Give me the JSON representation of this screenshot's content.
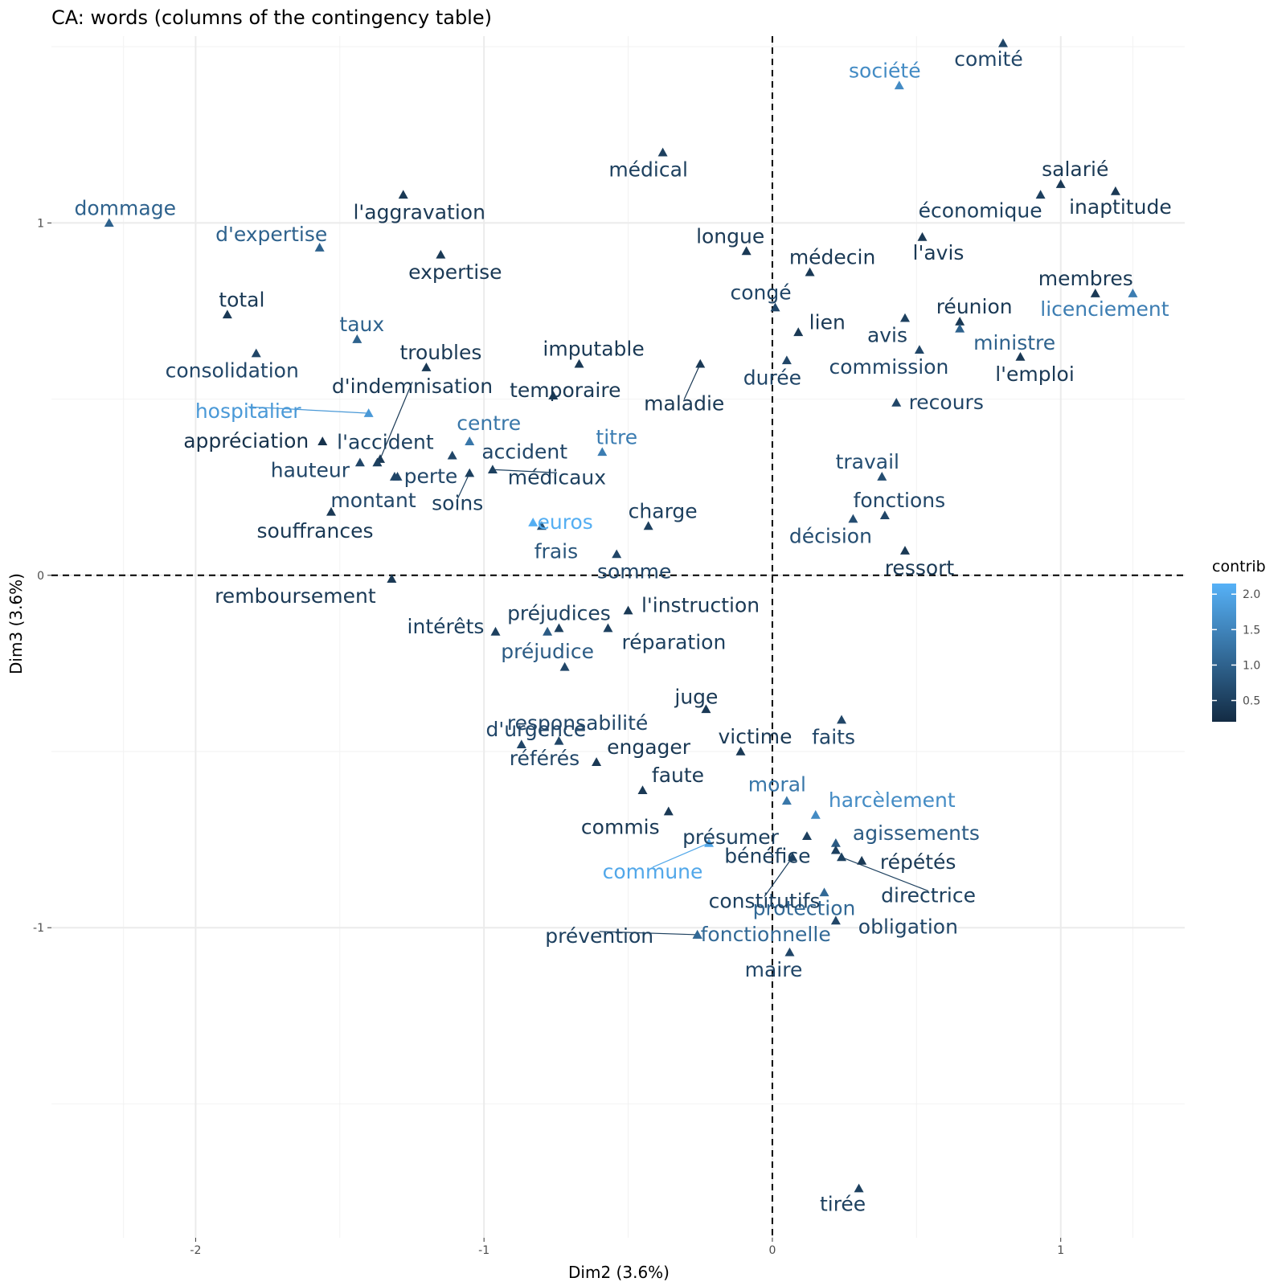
{
  "chart_data": {
    "type": "scatter",
    "title": "CA: words (columns of the contingency table)",
    "xlabel": "Dim2 (3.6%)",
    "ylabel": "Dim3 (3.6%)",
    "xlim": [
      -2.5,
      1.43
    ],
    "ylim": [
      -1.88,
      1.53
    ],
    "xticks": [
      -2,
      -1,
      0,
      1
    ],
    "xtick_labels": [
      "-2",
      "-1",
      "0",
      "1"
    ],
    "yticks": [
      -1,
      0,
      1
    ],
    "ytick_labels": [
      "-1",
      "0",
      "1"
    ],
    "reference_lines": [
      0,
      0
    ],
    "grid": true,
    "color_scale": {
      "title": "contrib",
      "min": 0.2,
      "max": 2.15,
      "low_color": "#132B43",
      "high_color": "#56B1F7",
      "ticks": [
        2.0,
        1.5,
        1.0,
        0.5
      ],
      "tick_labels": [
        "2.0",
        "1.5",
        "1.0",
        "0.5"
      ],
      "legend_position": "right"
    },
    "points": [
      {
        "label": "dommage",
        "x": -2.3,
        "y": 1.0,
        "contrib": 1.0
      },
      {
        "label": "d'expertise",
        "x": -1.57,
        "y": 0.93,
        "contrib": 1.0
      },
      {
        "label": "l'aggravation",
        "x": -1.28,
        "y": 1.08,
        "contrib": 0.4
      },
      {
        "label": "expertise",
        "x": -1.15,
        "y": 0.91,
        "contrib": 0.4
      },
      {
        "label": "total",
        "x": -1.89,
        "y": 0.74,
        "contrib": 0.4
      },
      {
        "label": "taux",
        "x": -1.44,
        "y": 0.67,
        "contrib": 1.0
      },
      {
        "label": "consolidation",
        "x": -1.79,
        "y": 0.63,
        "contrib": 0.6
      },
      {
        "label": "troubles",
        "x": -1.2,
        "y": 0.59,
        "contrib": 0.4
      },
      {
        "label": "d'indemnisation",
        "x": -1.36,
        "y": 0.33,
        "contrib": 0.4
      },
      {
        "label": "hospitalier",
        "x": -1.4,
        "y": 0.46,
        "contrib": 1.8
      },
      {
        "label": "appréciation",
        "x": -1.56,
        "y": 0.38,
        "contrib": 0.3
      },
      {
        "label": "l'accident",
        "x": -1.37,
        "y": 0.32,
        "contrib": 0.5
      },
      {
        "label": "hauteur",
        "x": -1.43,
        "y": 0.32,
        "contrib": 0.6
      },
      {
        "label": "perte",
        "x": -1.31,
        "y": 0.28,
        "contrib": 0.6
      },
      {
        "label": "montant",
        "x": -1.3,
        "y": 0.28,
        "contrib": 0.6
      },
      {
        "label": "souffrances",
        "x": -1.53,
        "y": 0.18,
        "contrib": 0.4
      },
      {
        "label": "centre",
        "x": -1.05,
        "y": 0.38,
        "contrib": 1.3
      },
      {
        "label": "accident",
        "x": -1.11,
        "y": 0.34,
        "contrib": 0.6
      },
      {
        "label": "médicaux",
        "x": -0.97,
        "y": 0.3,
        "contrib": 0.5
      },
      {
        "label": "soins",
        "x": -1.05,
        "y": 0.29,
        "contrib": 0.5
      },
      {
        "label": "imputable",
        "x": -0.67,
        "y": 0.6,
        "contrib": 0.4
      },
      {
        "label": "temporaire",
        "x": -0.76,
        "y": 0.51,
        "contrib": 0.4
      },
      {
        "label": "titre",
        "x": -0.59,
        "y": 0.35,
        "contrib": 1.4
      },
      {
        "label": "médical",
        "x": -0.38,
        "y": 1.2,
        "contrib": 0.5
      },
      {
        "label": "maladie",
        "x": -0.25,
        "y": 0.6,
        "contrib": 0.4
      },
      {
        "label": "euros",
        "x": -0.83,
        "y": 0.15,
        "contrib": 2.1
      },
      {
        "label": "frais",
        "x": -0.8,
        "y": 0.14,
        "contrib": 0.8
      },
      {
        "label": "charge",
        "x": -0.43,
        "y": 0.14,
        "contrib": 0.5
      },
      {
        "label": "somme",
        "x": -0.54,
        "y": 0.06,
        "contrib": 0.6
      },
      {
        "label": "remboursement",
        "x": -1.32,
        "y": -0.01,
        "contrib": 0.4
      },
      {
        "label": "l'instruction",
        "x": -0.5,
        "y": -0.1,
        "contrib": 0.4
      },
      {
        "label": "intérêts",
        "x": -0.96,
        "y": -0.16,
        "contrib": 0.5
      },
      {
        "label": "préjudices",
        "x": -0.74,
        "y": -0.15,
        "contrib": 0.5
      },
      {
        "label": "préjudice",
        "x": -0.78,
        "y": -0.16,
        "contrib": 0.9
      },
      {
        "label": "réparation",
        "x": -0.57,
        "y": -0.15,
        "contrib": 0.5
      },
      {
        "label": "responsabilité",
        "x": -0.72,
        "y": -0.26,
        "contrib": 0.6
      },
      {
        "label": "juge",
        "x": -0.23,
        "y": -0.38,
        "contrib": 0.4
      },
      {
        "label": "d'urgence",
        "x": -0.87,
        "y": -0.48,
        "contrib": 0.6
      },
      {
        "label": "référés",
        "x": -0.74,
        "y": -0.47,
        "contrib": 0.6
      },
      {
        "label": "engager",
        "x": -0.61,
        "y": -0.53,
        "contrib": 0.4
      },
      {
        "label": "victime",
        "x": -0.11,
        "y": -0.5,
        "contrib": 0.4
      },
      {
        "label": "faits",
        "x": 0.24,
        "y": -0.41,
        "contrib": 0.6
      },
      {
        "label": "faute",
        "x": -0.45,
        "y": -0.61,
        "contrib": 0.4
      },
      {
        "label": "commis",
        "x": -0.36,
        "y": -0.67,
        "contrib": 0.4
      },
      {
        "label": "présumer",
        "x": 0.12,
        "y": -0.74,
        "contrib": 0.5
      },
      {
        "label": "moral",
        "x": 0.05,
        "y": -0.64,
        "contrib": 1.3
      },
      {
        "label": "harcèlement",
        "x": 0.15,
        "y": -0.68,
        "contrib": 1.6
      },
      {
        "label": "agissements",
        "x": 0.22,
        "y": -0.76,
        "contrib": 0.9
      },
      {
        "label": "bénéfice",
        "x": 0.22,
        "y": -0.78,
        "contrib": 0.5
      },
      {
        "label": "répétés",
        "x": 0.31,
        "y": -0.81,
        "contrib": 0.4
      },
      {
        "label": "directrice",
        "x": 0.24,
        "y": -0.8,
        "contrib": 0.5
      },
      {
        "label": "commune",
        "x": -0.22,
        "y": -0.76,
        "contrib": 2.0
      },
      {
        "label": "protection",
        "x": 0.18,
        "y": -0.9,
        "contrib": 1.1
      },
      {
        "label": "constitutifs",
        "x": 0.07,
        "y": -0.8,
        "contrib": 0.5
      },
      {
        "label": "obligation",
        "x": 0.22,
        "y": -0.98,
        "contrib": 0.6
      },
      {
        "label": "prévention",
        "x": -0.26,
        "y": -1.02,
        "contrib": 0.5
      },
      {
        "label": "fonctionnelle",
        "x": -0.26,
        "y": -1.02,
        "contrib": 1.1
      },
      {
        "label": "maire",
        "x": 0.06,
        "y": -1.07,
        "contrib": 0.6
      },
      {
        "label": "tirée",
        "x": 0.3,
        "y": -1.74,
        "contrib": 0.5
      },
      {
        "label": "comité",
        "x": 0.8,
        "y": 1.51,
        "contrib": 0.6
      },
      {
        "label": "société",
        "x": 0.44,
        "y": 1.39,
        "contrib": 1.6
      },
      {
        "label": "salarié",
        "x": 1.0,
        "y": 1.11,
        "contrib": 0.4
      },
      {
        "label": "économique",
        "x": 0.93,
        "y": 1.08,
        "contrib": 0.5
      },
      {
        "label": "inaptitude",
        "x": 1.19,
        "y": 1.09,
        "contrib": 0.4
      },
      {
        "label": "l'avis",
        "x": 0.52,
        "y": 0.96,
        "contrib": 0.4
      },
      {
        "label": "longue",
        "x": -0.09,
        "y": 0.92,
        "contrib": 0.4
      },
      {
        "label": "médecin",
        "x": 0.13,
        "y": 0.86,
        "contrib": 0.4
      },
      {
        "label": "congé",
        "x": 0.01,
        "y": 0.76,
        "contrib": 0.6
      },
      {
        "label": "membres",
        "x": 1.12,
        "y": 0.8,
        "contrib": 0.4
      },
      {
        "label": "licenciement",
        "x": 1.25,
        "y": 0.8,
        "contrib": 1.4
      },
      {
        "label": "réunion",
        "x": 0.65,
        "y": 0.72,
        "contrib": 0.4
      },
      {
        "label": "ministre",
        "x": 0.65,
        "y": 0.7,
        "contrib": 1.0
      },
      {
        "label": "lien",
        "x": 0.09,
        "y": 0.69,
        "contrib": 0.4
      },
      {
        "label": "avis",
        "x": 0.46,
        "y": 0.73,
        "contrib": 0.5
      },
      {
        "label": "commission",
        "x": 0.51,
        "y": 0.64,
        "contrib": 0.6
      },
      {
        "label": "l'emploi",
        "x": 0.86,
        "y": 0.62,
        "contrib": 0.4
      },
      {
        "label": "durée",
        "x": 0.05,
        "y": 0.61,
        "contrib": 0.6
      },
      {
        "label": "recours",
        "x": 0.43,
        "y": 0.49,
        "contrib": 0.6
      },
      {
        "label": "travail",
        "x": 0.38,
        "y": 0.28,
        "contrib": 0.7
      },
      {
        "label": "fonctions",
        "x": 0.39,
        "y": 0.17,
        "contrib": 0.6
      },
      {
        "label": "décision",
        "x": 0.28,
        "y": 0.16,
        "contrib": 0.7
      },
      {
        "label": "ressort",
        "x": 0.46,
        "y": 0.07,
        "contrib": 0.4
      }
    ]
  }
}
